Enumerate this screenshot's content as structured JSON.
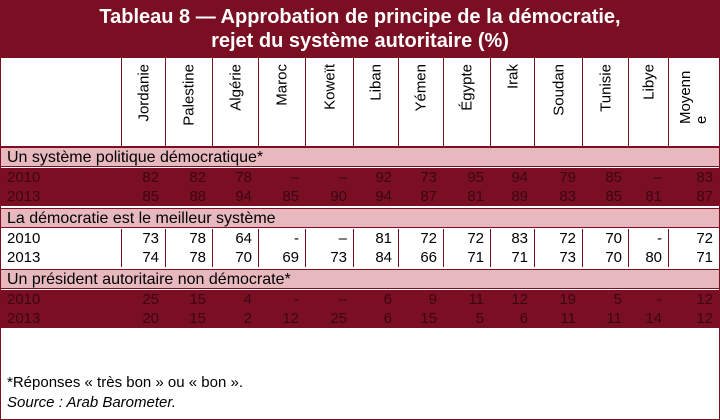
{
  "title": {
    "line1": "Tableau 8 — Approbation  de principe  de la démocratie,",
    "line2": "rejet du système  autoritaire  (%)"
  },
  "columns": [
    "Jordanie",
    "Palestine",
    "Algérie",
    "Maroc",
    "Koweït",
    "Liban",
    "Yémen",
    "Égypte",
    "Irak",
    "Soudan",
    "Tunisie",
    "Libye",
    "Moyenn e"
  ],
  "sections": [
    {
      "label": "Un système politique démocratique*",
      "style": "dark",
      "rows": [
        {
          "year": "2010",
          "values": [
            "82",
            "82",
            "78",
            "–",
            "–",
            "92",
            "73",
            "95",
            "94",
            "79",
            "85",
            "–",
            "83"
          ]
        },
        {
          "year": "2013",
          "values": [
            "85",
            "88",
            "94",
            "85",
            "90",
            "94",
            "87",
            "81",
            "89",
            "83",
            "85",
            "81",
            "87"
          ]
        }
      ]
    },
    {
      "label": "La démocratie est le meilleur système",
      "style": "light",
      "rows": [
        {
          "year": "2010",
          "values": [
            "73",
            "78",
            "64",
            "-",
            "–",
            "81",
            "72",
            "72",
            "83",
            "72",
            "70",
            "-",
            "72"
          ]
        },
        {
          "year": "2013",
          "values": [
            "74",
            "78",
            "70",
            "69",
            "73",
            "84",
            "66",
            "71",
            "71",
            "73",
            "70",
            "80",
            "71"
          ]
        }
      ]
    },
    {
      "label": "Un président autoritaire non démocrate*",
      "style": "dark",
      "rows": [
        {
          "year": "2010",
          "values": [
            "25",
            "15",
            "4",
            "-",
            "–",
            "6",
            "9",
            "11",
            "12",
            "19",
            "5",
            "-",
            "12"
          ]
        },
        {
          "year": "2013",
          "values": [
            "20",
            "15",
            "2",
            "12",
            "25",
            "6",
            "15",
            "5",
            "6",
            "11",
            "11",
            "14",
            "12"
          ]
        }
      ]
    }
  ],
  "notes": {
    "note": "*Réponses « très bon » ou « bon ».",
    "source": "Source : Arab Barometer."
  },
  "colors": {
    "accent": "#7a0f23",
    "section_bg": "#e7b9bf"
  }
}
